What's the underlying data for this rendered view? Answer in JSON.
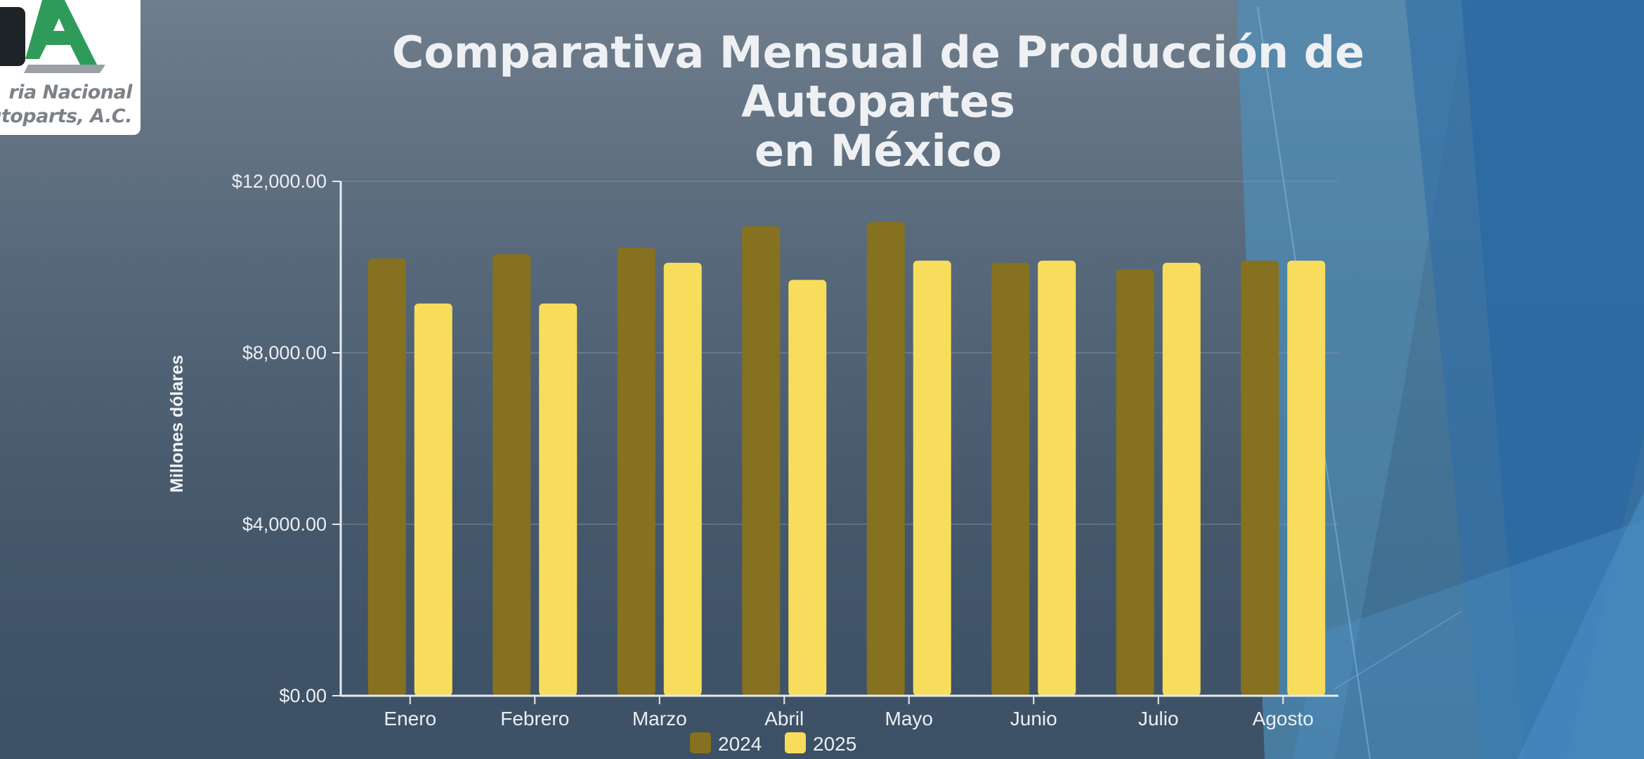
{
  "logo": {
    "line1": "ria Nacional",
    "line2": "utoparts, A.C."
  },
  "chart_data": {
    "type": "bar",
    "title": "Comparativa Mensual de Producción de Autopartes en México",
    "title_lines": [
      "Comparativa Mensual de Producción de Autopartes",
      "en México"
    ],
    "xlabel": "",
    "ylabel": "Millones dólares",
    "categories": [
      "Enero",
      "Febrero",
      "Marzo",
      "Abril",
      "Mayo",
      "Junio",
      "Julio",
      "Agosto"
    ],
    "series": [
      {
        "name": "2024",
        "color": "#85711f",
        "values": [
          10200,
          10300,
          10450,
          10950,
          11050,
          10100,
          9950,
          10150
        ]
      },
      {
        "name": "2025",
        "color": "#f8dd5c",
        "values": [
          9150,
          9150,
          10100,
          9700,
          10150,
          10150,
          10100,
          10150
        ]
      }
    ],
    "ylim": [
      0,
      12000
    ],
    "yticks": [
      0,
      4000,
      8000,
      12000
    ],
    "ytick_labels": [
      "$0.00",
      "$4,000.00",
      "$8,000.00",
      "$12,000.00"
    ],
    "grid": true,
    "legend_position": "bottom-center"
  }
}
